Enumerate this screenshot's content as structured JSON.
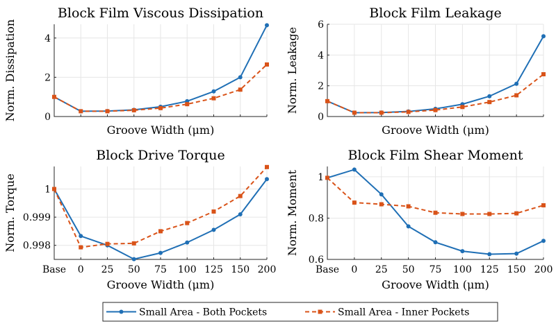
{
  "colors": {
    "series1": "#1f6fb5",
    "series2": "#d95319"
  },
  "legend": {
    "entries": [
      "Small Area - Both Pockets",
      "Small Area - Inner Pockets"
    ]
  },
  "chart_data": [
    {
      "type": "line",
      "title": "Block Film Viscous Dissipation",
      "xlabel": "Groove Width (μm)",
      "ylabel": "Norm. Dissipation",
      "categories": [
        "Base",
        "0",
        "25",
        "50",
        "75",
        "100",
        "125",
        "150",
        "200"
      ],
      "show_xtick_labels": false,
      "ylim": [
        0,
        4.7
      ],
      "yticks": [
        0,
        2,
        4
      ],
      "ytick_labels": [
        "0",
        "2",
        "4"
      ],
      "series": [
        {
          "name": "Small Area - Both Pockets",
          "values": [
            1.0,
            0.27,
            0.28,
            0.34,
            0.5,
            0.78,
            1.28,
            2.0,
            4.65
          ]
        },
        {
          "name": "Small Area - Inner Pockets",
          "values": [
            1.0,
            0.27,
            0.27,
            0.32,
            0.43,
            0.63,
            0.93,
            1.37,
            2.65
          ]
        }
      ]
    },
    {
      "type": "line",
      "title": "Block Film Leakage",
      "xlabel": "Groove Width (μm)",
      "ylabel": "Norm. Leakage",
      "categories": [
        "Base",
        "0",
        "25",
        "50",
        "75",
        "100",
        "125",
        "150",
        "200"
      ],
      "show_xtick_labels": false,
      "ylim": [
        0,
        6
      ],
      "yticks": [
        0,
        2,
        4,
        6
      ],
      "ytick_labels": [
        "0",
        "2",
        "4",
        "6"
      ],
      "series": [
        {
          "name": "Small Area - Both Pockets",
          "values": [
            1.0,
            0.25,
            0.26,
            0.33,
            0.5,
            0.8,
            1.32,
            2.13,
            5.22
          ]
        },
        {
          "name": "Small Area - Inner Pockets",
          "values": [
            1.0,
            0.25,
            0.25,
            0.3,
            0.42,
            0.62,
            0.94,
            1.38,
            2.75
          ]
        }
      ]
    },
    {
      "type": "line",
      "title": "Block Drive Torque",
      "xlabel": "Groove Width (μm)",
      "ylabel": "Norm. Torque",
      "categories": [
        "Base",
        "0",
        "25",
        "50",
        "75",
        "100",
        "125",
        "150",
        "200"
      ],
      "show_xtick_labels": true,
      "ylim": [
        0.9975,
        1.0008
      ],
      "yticks": [
        0.998,
        0.999,
        1.0
      ],
      "ytick_labels": [
        "0.998",
        "0.999",
        "1"
      ],
      "series": [
        {
          "name": "Small Area - Both Pockets",
          "values": [
            1.0,
            0.99833,
            0.998,
            0.99751,
            0.99773,
            0.9981,
            0.99855,
            0.9991,
            1.00035
          ]
        },
        {
          "name": "Small Area - Inner Pockets",
          "values": [
            1.0,
            0.99793,
            0.99805,
            0.99807,
            0.9985,
            0.99879,
            0.9992,
            0.99975,
            1.00078
          ]
        }
      ]
    },
    {
      "type": "line",
      "title": "Block Film Shear Moment",
      "xlabel": "Groove Width (μm)",
      "ylabel": "Norm. Moment",
      "categories": [
        "Base",
        "0",
        "25",
        "50",
        "75",
        "100",
        "125",
        "150",
        "200"
      ],
      "show_xtick_labels": true,
      "ylim": [
        0.6,
        1.05
      ],
      "yticks": [
        0.6,
        0.8,
        1.0
      ],
      "ytick_labels": [
        "0.6",
        "0.8",
        "1"
      ],
      "series": [
        {
          "name": "Small Area - Both Pockets",
          "values": [
            0.995,
            1.035,
            0.915,
            0.76,
            0.683,
            0.64,
            0.625,
            0.628,
            0.69
          ]
        },
        {
          "name": "Small Area - Inner Pockets",
          "values": [
            0.995,
            0.875,
            0.867,
            0.857,
            0.826,
            0.82,
            0.82,
            0.823,
            0.862
          ]
        }
      ]
    }
  ]
}
